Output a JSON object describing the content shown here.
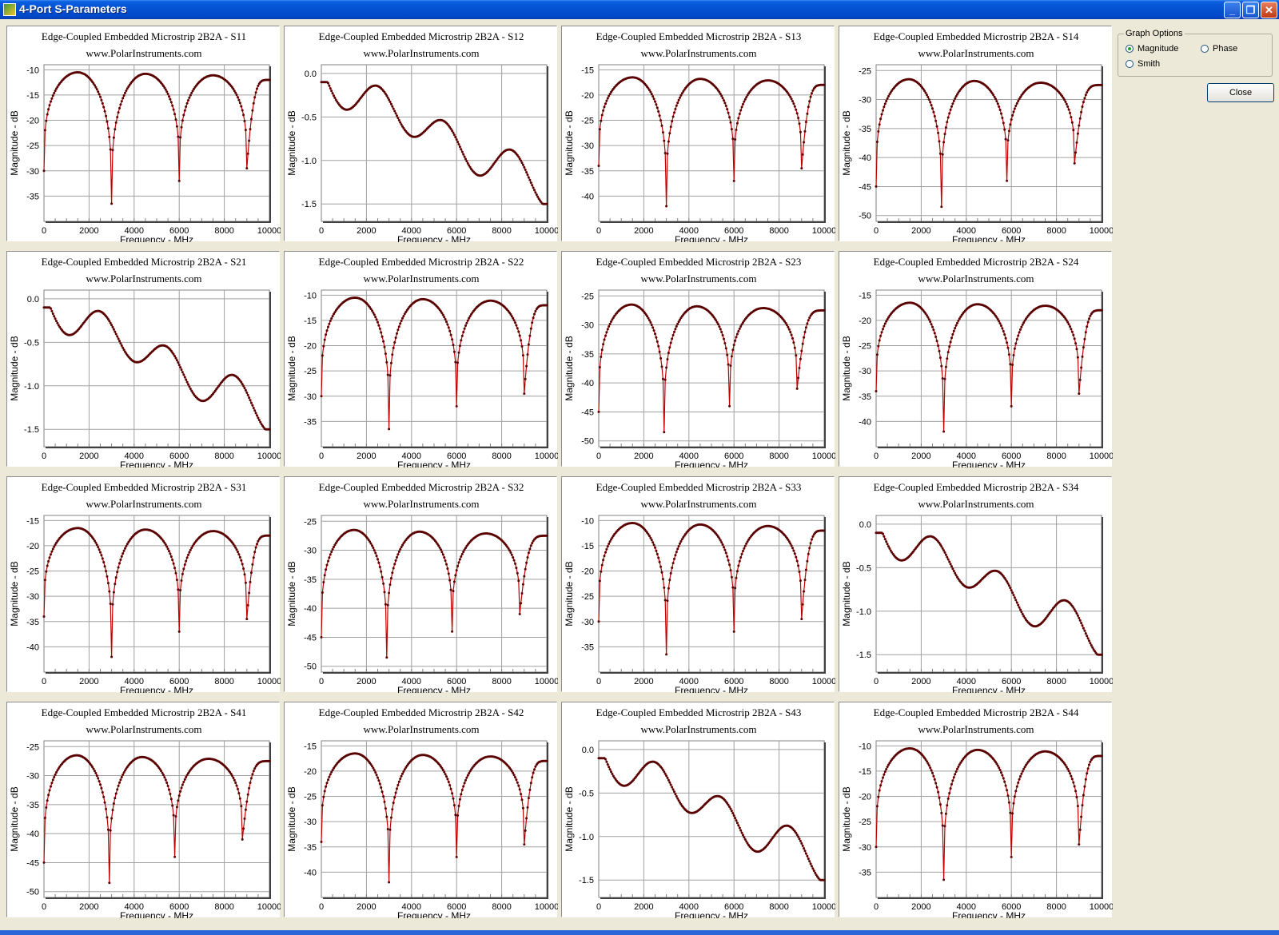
{
  "window": {
    "title": "4-Port S-Parameters",
    "min_glyph": "_",
    "max_glyph": "❐",
    "close_glyph": "✕"
  },
  "options": {
    "group_label": "Graph Options",
    "magnitude": "Magnitude",
    "phase": "Phase",
    "smith": "Smith",
    "selected": "magnitude",
    "close_label": "Close"
  },
  "colors": {
    "trace": "#c00000",
    "marker": "#5a0000",
    "grid": "#a0a0a0"
  },
  "chart_data": [
    {
      "param": "S11",
      "title": "Edge-Coupled Embedded Microstrip 2B2A - S11",
      "subtitle": "www.PolarInstruments.com",
      "xlabel": "Frequency - MHz",
      "ylabel": "Magnitude - dB",
      "type": "line",
      "shape": "return",
      "ymin": -40,
      "ymax": -9,
      "yticks": [
        -10,
        -15,
        -20,
        -25,
        -30,
        -35
      ],
      "xticks": [
        0,
        2000,
        4000,
        6000,
        8000,
        10000
      ],
      "peak": -10.5,
      "start": -30,
      "end": -12,
      "nulls": [
        [
          3000,
          -36.5
        ],
        [
          6000,
          -32
        ],
        [
          9000,
          -29.5
        ]
      ]
    },
    {
      "param": "S12",
      "title": "Edge-Coupled Embedded Microstrip 2B2A - S12",
      "subtitle": "www.PolarInstruments.com",
      "xlabel": "Frequency - MHz",
      "ylabel": "Magnitude - dB",
      "type": "line",
      "shape": "insertion",
      "ymin": -1.7,
      "ymax": 0.1,
      "yticks": [
        0.0,
        -0.5,
        -1.0,
        -1.5
      ],
      "xticks": [
        0,
        2000,
        4000,
        6000,
        8000,
        10000
      ]
    },
    {
      "param": "S13",
      "title": "Edge-Coupled Embedded Microstrip 2B2A - S13",
      "subtitle": "www.PolarInstruments.com",
      "xlabel": "Frequency - MHz",
      "ylabel": "Magnitude - dB",
      "type": "line",
      "shape": "return",
      "ymin": -45,
      "ymax": -14,
      "yticks": [
        -15,
        -20,
        -25,
        -30,
        -35,
        -40
      ],
      "xticks": [
        0,
        2000,
        4000,
        6000,
        8000,
        10000
      ],
      "peak": -16.5,
      "start": -34,
      "end": -18,
      "nulls": [
        [
          3000,
          -42
        ],
        [
          6000,
          -37
        ],
        [
          9000,
          -34.5
        ]
      ]
    },
    {
      "param": "S14",
      "title": "Edge-Coupled Embedded Microstrip 2B2A - S14",
      "subtitle": "www.PolarInstruments.com",
      "xlabel": "Frequency - MHz",
      "ylabel": "Magnitude - dB",
      "type": "line",
      "shape": "return",
      "ymin": -51,
      "ymax": -24,
      "yticks": [
        -25,
        -30,
        -35,
        -40,
        -45,
        -50
      ],
      "xticks": [
        0,
        2000,
        4000,
        6000,
        8000,
        10000
      ],
      "peak": -26.5,
      "start": -45,
      "end": -27.5,
      "nulls": [
        [
          2900,
          -48.5
        ],
        [
          5800,
          -44
        ],
        [
          8800,
          -41
        ]
      ]
    },
    {
      "param": "S21",
      "title": "Edge-Coupled Embedded Microstrip 2B2A - S21",
      "subtitle": "www.PolarInstruments.com",
      "xlabel": "Frequency - MHz",
      "ylabel": "Magnitude - dB",
      "type": "line",
      "shape": "insertion",
      "ymin": -1.7,
      "ymax": 0.1,
      "yticks": [
        0.0,
        -0.5,
        -1.0,
        -1.5
      ],
      "xticks": [
        0,
        2000,
        4000,
        6000,
        8000,
        10000
      ]
    },
    {
      "param": "S22",
      "title": "Edge-Coupled Embedded Microstrip 2B2A - S22",
      "subtitle": "www.PolarInstruments.com",
      "xlabel": "Frequency - MHz",
      "ylabel": "Magnitude - dB",
      "type": "line",
      "shape": "return",
      "ymin": -40,
      "ymax": -9,
      "yticks": [
        -10,
        -15,
        -20,
        -25,
        -30,
        -35
      ],
      "xticks": [
        0,
        2000,
        4000,
        6000,
        8000,
        10000
      ],
      "peak": -10.5,
      "start": -30,
      "end": -12,
      "nulls": [
        [
          3000,
          -36.5
        ],
        [
          6000,
          -32
        ],
        [
          9000,
          -29.5
        ]
      ]
    },
    {
      "param": "S23",
      "title": "Edge-Coupled Embedded Microstrip 2B2A - S23",
      "subtitle": "www.PolarInstruments.com",
      "xlabel": "Frequency - MHz",
      "ylabel": "Magnitude - dB",
      "type": "line",
      "shape": "return",
      "ymin": -51,
      "ymax": -24,
      "yticks": [
        -25,
        -30,
        -35,
        -40,
        -45,
        -50
      ],
      "xticks": [
        0,
        2000,
        4000,
        6000,
        8000,
        10000
      ],
      "peak": -26.5,
      "start": -45,
      "end": -27.5,
      "nulls": [
        [
          2900,
          -48.5
        ],
        [
          5800,
          -44
        ],
        [
          8800,
          -41
        ]
      ]
    },
    {
      "param": "S24",
      "title": "Edge-Coupled Embedded Microstrip 2B2A - S24",
      "subtitle": "www.PolarInstruments.com",
      "xlabel": "Frequency - MHz",
      "ylabel": "Magnitude - dB",
      "type": "line",
      "shape": "return",
      "ymin": -45,
      "ymax": -14,
      "yticks": [
        -15,
        -20,
        -25,
        -30,
        -35,
        -40
      ],
      "xticks": [
        0,
        2000,
        4000,
        6000,
        8000,
        10000
      ],
      "peak": -16.5,
      "start": -34,
      "end": -18,
      "nulls": [
        [
          3000,
          -42
        ],
        [
          6000,
          -37
        ],
        [
          9000,
          -34.5
        ]
      ]
    },
    {
      "param": "S31",
      "title": "Edge-Coupled Embedded Microstrip 2B2A - S31",
      "subtitle": "www.PolarInstruments.com",
      "xlabel": "Frequency - MHz",
      "ylabel": "Magnitude - dB",
      "type": "line",
      "shape": "return",
      "ymin": -45,
      "ymax": -14,
      "yticks": [
        -15,
        -20,
        -25,
        -30,
        -35,
        -40
      ],
      "xticks": [
        0,
        2000,
        4000,
        6000,
        8000,
        10000
      ],
      "peak": -16.5,
      "start": -34,
      "end": -18,
      "nulls": [
        [
          3000,
          -42
        ],
        [
          6000,
          -37
        ],
        [
          9000,
          -34.5
        ]
      ]
    },
    {
      "param": "S32",
      "title": "Edge-Coupled Embedded Microstrip 2B2A - S32",
      "subtitle": "www.PolarInstruments.com",
      "xlabel": "Frequency - MHz",
      "ylabel": "Magnitude - dB",
      "type": "line",
      "shape": "return",
      "ymin": -51,
      "ymax": -24,
      "yticks": [
        -25,
        -30,
        -35,
        -40,
        -45,
        -50
      ],
      "xticks": [
        0,
        2000,
        4000,
        6000,
        8000,
        10000
      ],
      "peak": -26.5,
      "start": -45,
      "end": -27.5,
      "nulls": [
        [
          2900,
          -48.5
        ],
        [
          5800,
          -44
        ],
        [
          8800,
          -41
        ]
      ]
    },
    {
      "param": "S33",
      "title": "Edge-Coupled Embedded Microstrip 2B2A - S33",
      "subtitle": "www.PolarInstruments.com",
      "xlabel": "Frequency - MHz",
      "ylabel": "Magnitude - dB",
      "type": "line",
      "shape": "return",
      "ymin": -40,
      "ymax": -9,
      "yticks": [
        -10,
        -15,
        -20,
        -25,
        -30,
        -35
      ],
      "xticks": [
        0,
        2000,
        4000,
        6000,
        8000,
        10000
      ],
      "peak": -10.5,
      "start": -30,
      "end": -12,
      "nulls": [
        [
          3000,
          -36.5
        ],
        [
          6000,
          -32
        ],
        [
          9000,
          -29.5
        ]
      ]
    },
    {
      "param": "S34",
      "title": "Edge-Coupled Embedded Microstrip 2B2A - S34",
      "subtitle": "www.PolarInstruments.com",
      "xlabel": "Frequency - MHz",
      "ylabel": "Magnitude - dB",
      "type": "line",
      "shape": "insertion",
      "ymin": -1.7,
      "ymax": 0.1,
      "yticks": [
        0.0,
        -0.5,
        -1.0,
        -1.5
      ],
      "xticks": [
        0,
        2000,
        4000,
        6000,
        8000,
        10000
      ]
    },
    {
      "param": "S41",
      "title": "Edge-Coupled Embedded Microstrip 2B2A - S41",
      "subtitle": "www.PolarInstruments.com",
      "xlabel": "Frequency - MHz",
      "ylabel": "Magnitude - dB",
      "type": "line",
      "shape": "return",
      "ymin": -51,
      "ymax": -24,
      "yticks": [
        -25,
        -30,
        -35,
        -40,
        -45,
        -50
      ],
      "xticks": [
        0,
        2000,
        4000,
        6000,
        8000,
        10000
      ],
      "peak": -26.5,
      "start": -45,
      "end": -27.5,
      "nulls": [
        [
          2900,
          -48.5
        ],
        [
          5800,
          -44
        ],
        [
          8800,
          -41
        ]
      ]
    },
    {
      "param": "S42",
      "title": "Edge-Coupled Embedded Microstrip 2B2A - S42",
      "subtitle": "www.PolarInstruments.com",
      "xlabel": "Frequency - MHz",
      "ylabel": "Magnitude - dB",
      "type": "line",
      "shape": "return",
      "ymin": -45,
      "ymax": -14,
      "yticks": [
        -15,
        -20,
        -25,
        -30,
        -35,
        -40
      ],
      "xticks": [
        0,
        2000,
        4000,
        6000,
        8000,
        10000
      ],
      "peak": -16.5,
      "start": -34,
      "end": -18,
      "nulls": [
        [
          3000,
          -42
        ],
        [
          6000,
          -37
        ],
        [
          9000,
          -34.5
        ]
      ]
    },
    {
      "param": "S43",
      "title": "Edge-Coupled Embedded Microstrip 2B2A - S43",
      "subtitle": "www.PolarInstruments.com",
      "xlabel": "Frequency - MHz",
      "ylabel": "Magnitude - dB",
      "type": "line",
      "shape": "insertion",
      "ymin": -1.7,
      "ymax": 0.1,
      "yticks": [
        0.0,
        -0.5,
        -1.0,
        -1.5
      ],
      "xticks": [
        0,
        2000,
        4000,
        6000,
        8000,
        10000
      ]
    },
    {
      "param": "S44",
      "title": "Edge-Coupled Embedded Microstrip 2B2A - S44",
      "subtitle": "www.PolarInstruments.com",
      "xlabel": "Frequency - MHz",
      "ylabel": "Magnitude - dB",
      "type": "line",
      "shape": "return",
      "ymin": -40,
      "ymax": -9,
      "yticks": [
        -10,
        -15,
        -20,
        -25,
        -30,
        -35
      ],
      "xticks": [
        0,
        2000,
        4000,
        6000,
        8000,
        10000
      ],
      "peak": -10.5,
      "start": -30,
      "end": -12,
      "nulls": [
        [
          3000,
          -36.5
        ],
        [
          6000,
          -32
        ],
        [
          9000,
          -29.5
        ]
      ]
    }
  ]
}
